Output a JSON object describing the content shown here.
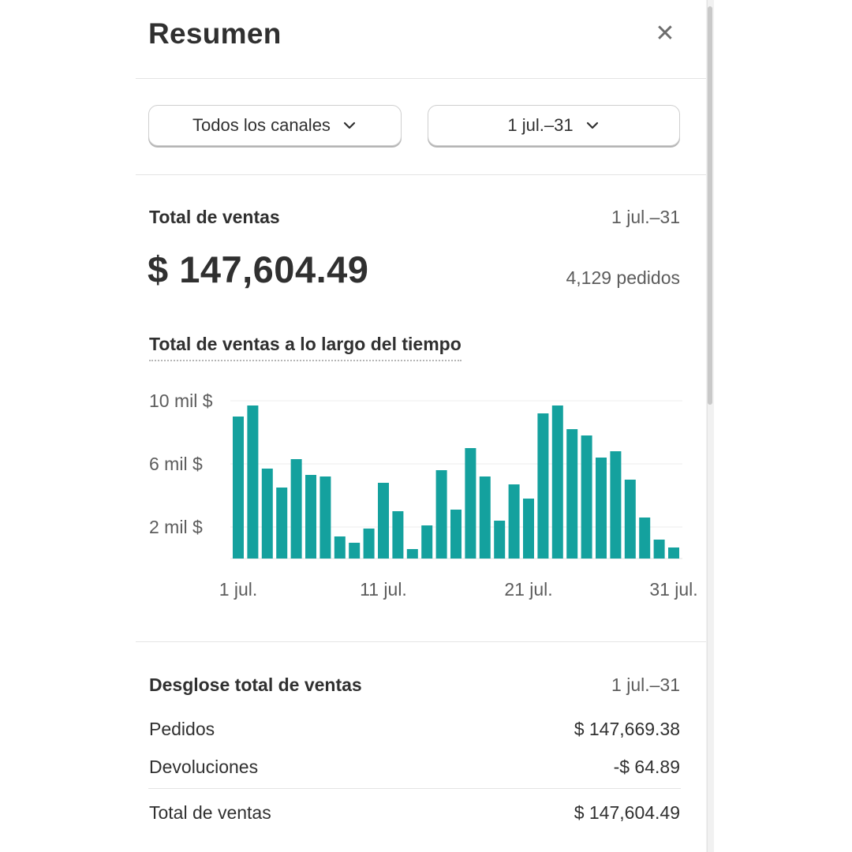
{
  "panel": {
    "title": "Resumen",
    "close_icon": "close-icon"
  },
  "filters": {
    "channel": "Todos los canales",
    "date_range": "1 jul.–31",
    "chevron_icon": "chevron-down-icon"
  },
  "total_sales": {
    "label": "Total de ventas",
    "period": "1 jul.–31",
    "amount": "$ 147,604.49",
    "orders": "4,129 pedidos"
  },
  "chart_title": "Total de ventas a lo largo del tiempo",
  "chart_data": {
    "type": "bar",
    "y_ticks": [
      "10 mil $",
      "6 mil $",
      "2 mil $"
    ],
    "x_ticks": [
      "1 jul.",
      "11 jul.",
      "21 jul.",
      "31 jul."
    ],
    "ylim": [
      0,
      10500
    ],
    "bar_color": "#14a19e",
    "grid": true,
    "categories": [
      "1",
      "2",
      "3",
      "4",
      "5",
      "6",
      "7",
      "8",
      "9",
      "10",
      "11",
      "12",
      "13",
      "14",
      "15",
      "16",
      "17",
      "18",
      "19",
      "20",
      "21",
      "22",
      "23",
      "24",
      "25",
      "26",
      "27",
      "28",
      "29",
      "30",
      "31"
    ],
    "values": [
      9000,
      9700,
      5700,
      4500,
      6300,
      5300,
      5200,
      1400,
      1000,
      1900,
      4800,
      3000,
      600,
      2100,
      5600,
      3100,
      7000,
      5200,
      2400,
      4700,
      3800,
      9200,
      9700,
      8200,
      7800,
      6400,
      6800,
      5000,
      2600,
      1200,
      700
    ]
  },
  "breakdown": {
    "title": "Desglose total de ventas",
    "period": "1 jul.–31",
    "rows": [
      {
        "label": "Pedidos",
        "value": "$ 147,669.38"
      },
      {
        "label": "Devoluciones",
        "value": "-$ 64.89"
      }
    ],
    "total": {
      "label": "Total de ventas",
      "value": "$ 147,604.49"
    }
  }
}
